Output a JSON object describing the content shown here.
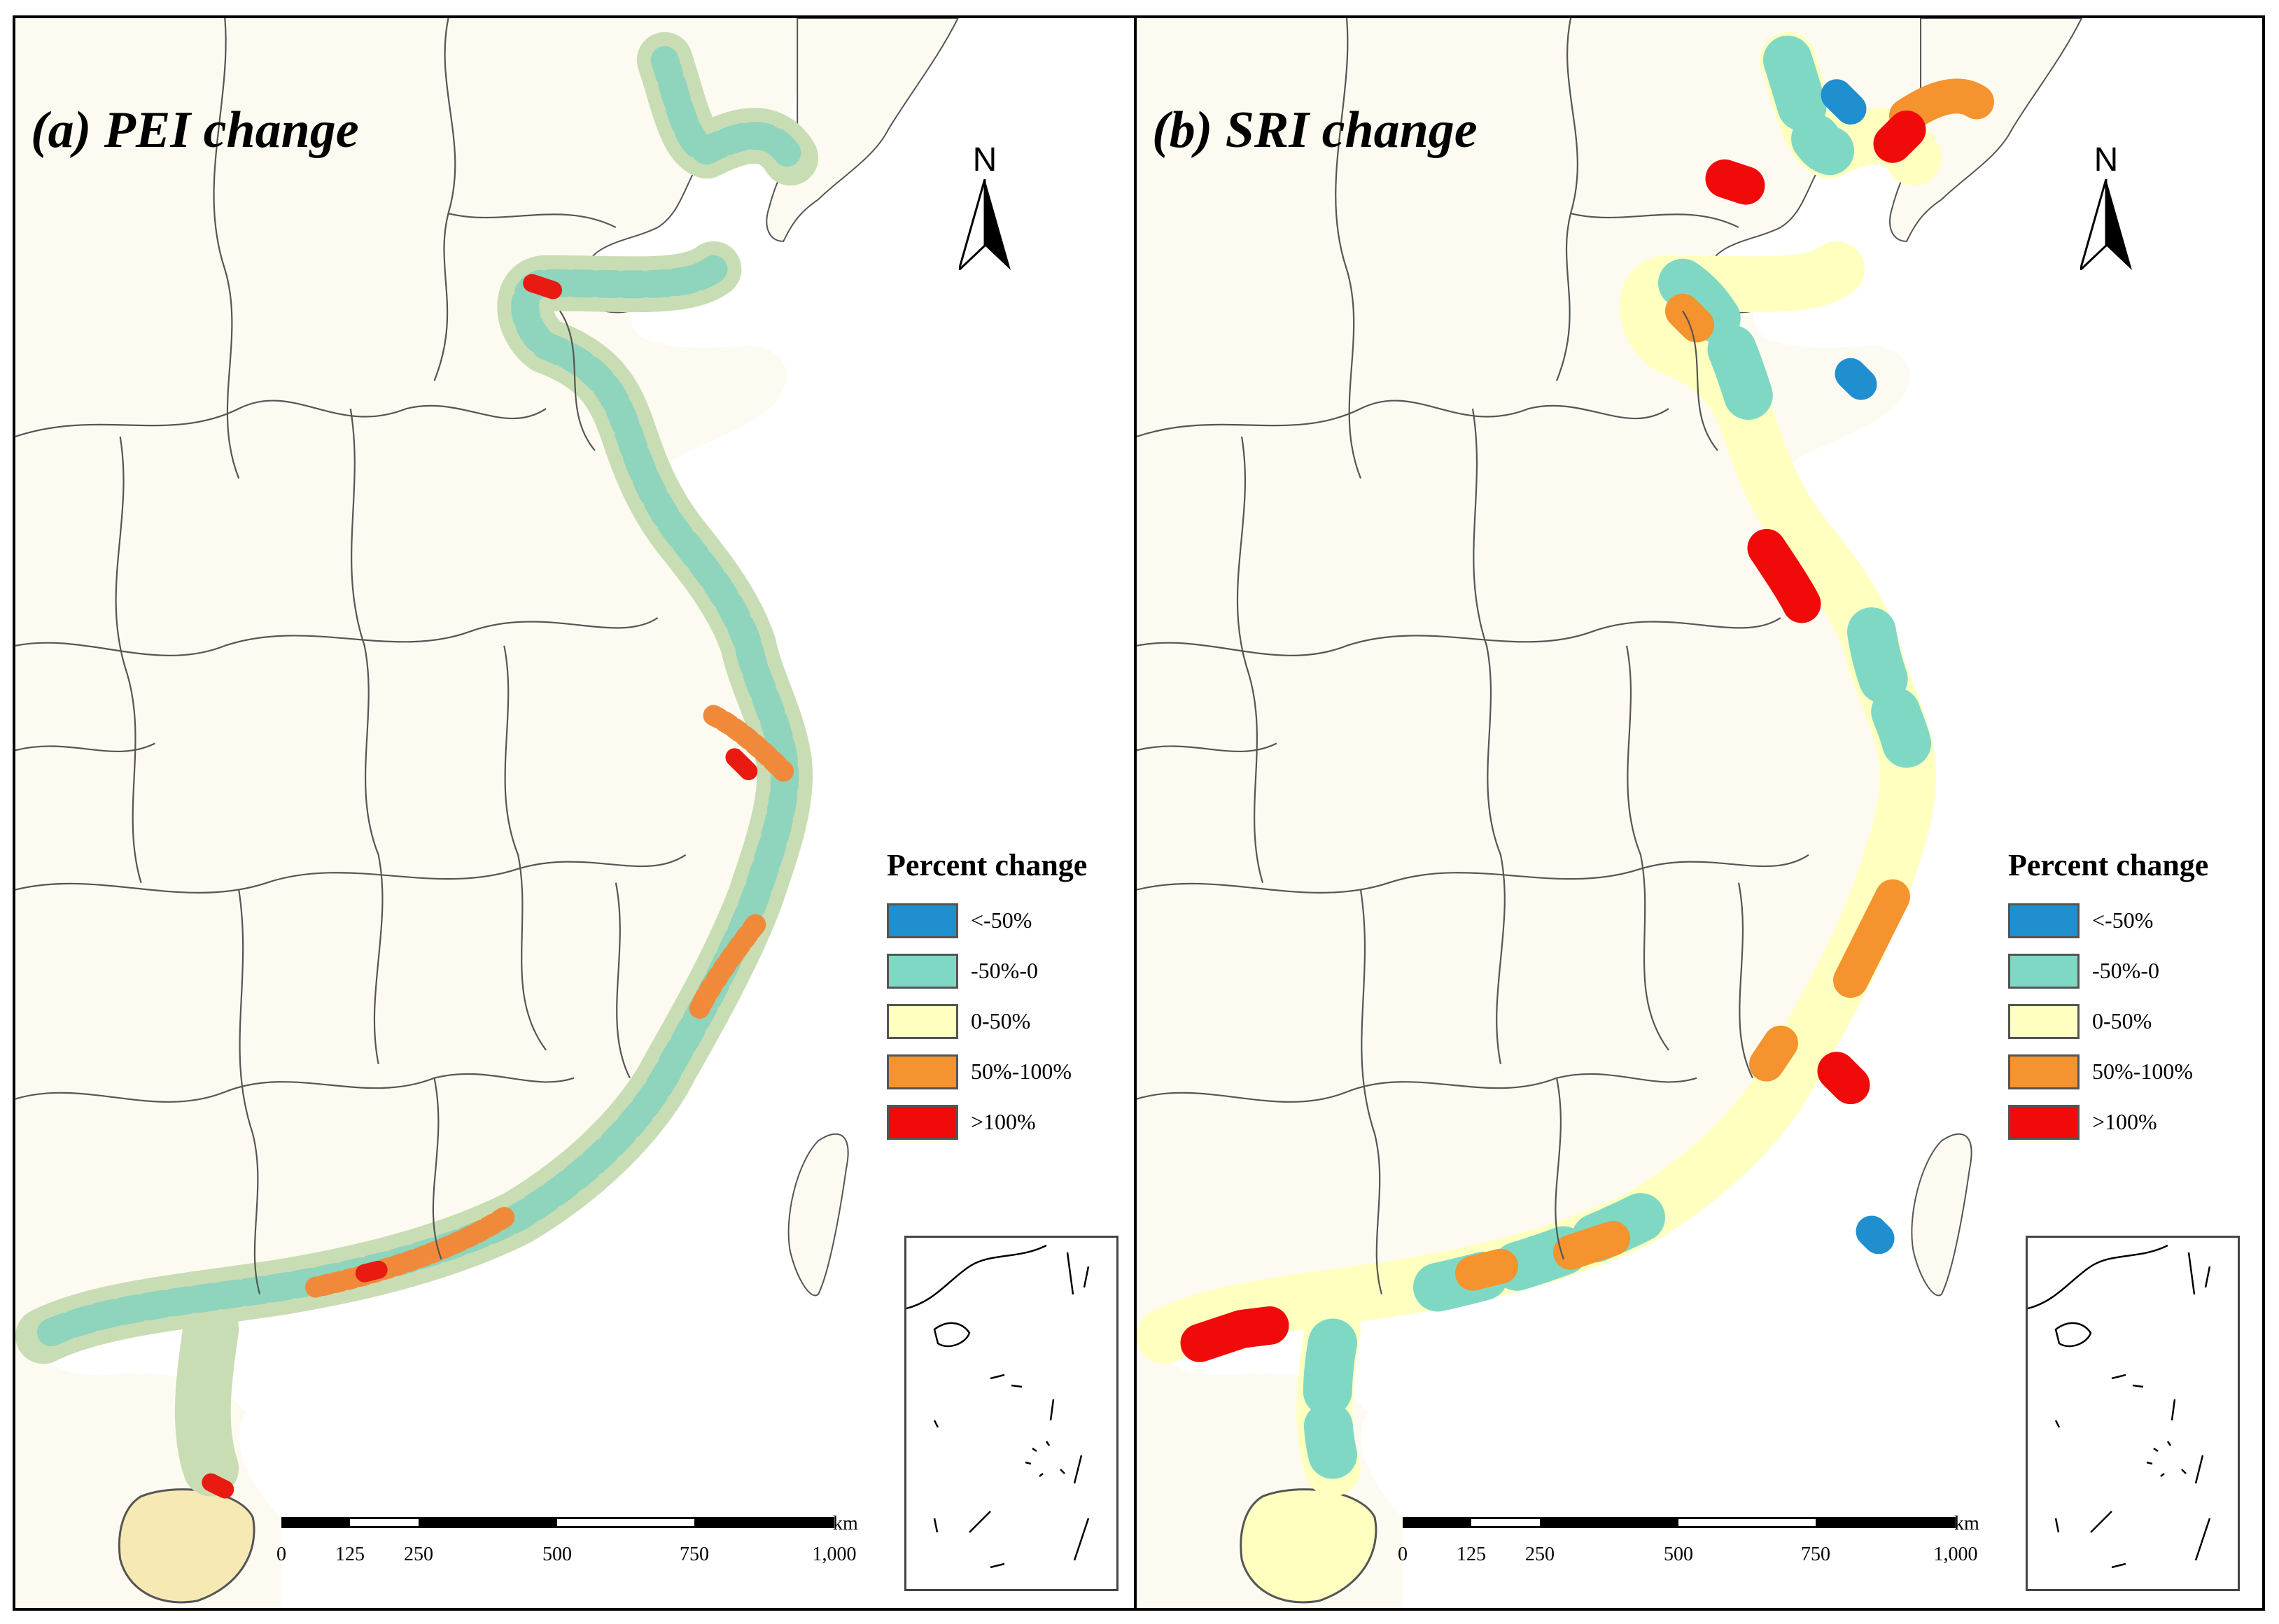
{
  "panels": [
    {
      "title": "(a) PEI change",
      "north_label": "N",
      "legend": {
        "title": "Percent change",
        "items": [
          {
            "label": "<-50%",
            "color": "#1f8fcf"
          },
          {
            "label": "-50%-0",
            "color": "#7fd8c4"
          },
          {
            "label": "0-50%",
            "color": "#ffffc0"
          },
          {
            "label": "50%-100%",
            "color": "#f5932e"
          },
          {
            "label": ">100%",
            "color": "#f00a0a"
          }
        ]
      },
      "scalebar": {
        "ticks": [
          "0",
          "125",
          "250",
          "500",
          "750",
          "1,000"
        ],
        "unit": "km"
      }
    },
    {
      "title": "(b) SRI change",
      "north_label": "N",
      "legend": {
        "title": "Percent change",
        "items": [
          {
            "label": "<-50%",
            "color": "#1f8fcf"
          },
          {
            "label": "-50%-0",
            "color": "#7fd8c4"
          },
          {
            "label": "0-50%",
            "color": "#ffffc0"
          },
          {
            "label": "50%-100%",
            "color": "#f5932e"
          },
          {
            "label": ">100%",
            "color": "#f00a0a"
          }
        ]
      },
      "scalebar": {
        "ticks": [
          "0",
          "125",
          "250",
          "500",
          "750",
          "1,000"
        ],
        "unit": "km"
      }
    }
  ],
  "colors": {
    "land": "#fdfbf1",
    "sea": "#ffffff",
    "boundary": "#555555"
  }
}
